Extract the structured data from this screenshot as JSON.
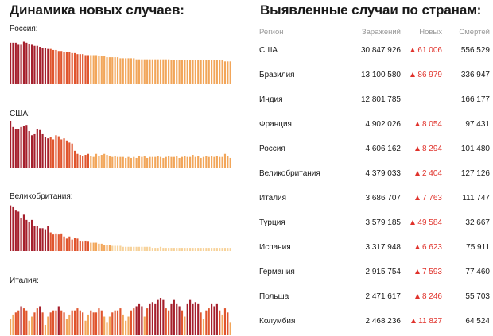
{
  "left_title": "Динамика новых случаев:",
  "right_title": "Выявленные случаи по странам:",
  "colors": {
    "high": "#a51f2c",
    "mid": "#e0552e",
    "low": "#f2a65a",
    "faint": "#f7d29a",
    "new_up": "#e0322b"
  },
  "charts": [
    {
      "country": "Россия:",
      "values": [
        40,
        40,
        40,
        38,
        38,
        41,
        40,
        39,
        38,
        37,
        37,
        36,
        35,
        35,
        34,
        34,
        33,
        33,
        32,
        32,
        31,
        31,
        31,
        30,
        30,
        29,
        29,
        29,
        28,
        28,
        28,
        28,
        28,
        27,
        27,
        27,
        26,
        26,
        26,
        26,
        26,
        25,
        25,
        25,
        25,
        25,
        25,
        24,
        24,
        24,
        24,
        24,
        24,
        24,
        24,
        24,
        24,
        24,
        24,
        24,
        23,
        23,
        23,
        23,
        23,
        23,
        23,
        23,
        23,
        23,
        23,
        23,
        23,
        23,
        23,
        23,
        23,
        23,
        23,
        23,
        22,
        22,
        22
      ]
    },
    {
      "country": "США:",
      "values": [
        46,
        40,
        38,
        38,
        40,
        41,
        42,
        36,
        32,
        33,
        38,
        37,
        33,
        30,
        29,
        30,
        28,
        32,
        31,
        28,
        29,
        27,
        25,
        24,
        17,
        14,
        13,
        12,
        13,
        14,
        12,
        11,
        14,
        12,
        13,
        14,
        13,
        12,
        11,
        12,
        11,
        11,
        11,
        10,
        11,
        10,
        11,
        10,
        12,
        11,
        12,
        10,
        11,
        11,
        11,
        12,
        11,
        10,
        11,
        12,
        11,
        11,
        12,
        10,
        11,
        12,
        11,
        11,
        13,
        11,
        12,
        10,
        11,
        12,
        11,
        12,
        11,
        12,
        11,
        11,
        14,
        12,
        10
      ]
    },
    {
      "country": "Великобритания:",
      "values": [
        44,
        43,
        39,
        38,
        32,
        35,
        30,
        28,
        30,
        24,
        24,
        22,
        22,
        21,
        24,
        18,
        16,
        17,
        16,
        17,
        14,
        12,
        14,
        11,
        13,
        12,
        10,
        9,
        10,
        9,
        8,
        8,
        8,
        7,
        7,
        6,
        6,
        6,
        5,
        5,
        5,
        5,
        4,
        4,
        4,
        4,
        4,
        4,
        4,
        4,
        4,
        4,
        4,
        3,
        3,
        3,
        4,
        3,
        3,
        3,
        3,
        3,
        3,
        3,
        3,
        3,
        3,
        3,
        3,
        3,
        3,
        3,
        3,
        3,
        3,
        3,
        3,
        3,
        3,
        3,
        3,
        3,
        3
      ]
    },
    {
      "country": "Италия:",
      "values": [
        16,
        20,
        22,
        24,
        28,
        26,
        24,
        14,
        18,
        22,
        26,
        28,
        22,
        10,
        18,
        22,
        24,
        24,
        28,
        24,
        22,
        16,
        20,
        24,
        24,
        26,
        24,
        22,
        14,
        20,
        24,
        22,
        22,
        26,
        24,
        18,
        12,
        18,
        22,
        24,
        24,
        26,
        20,
        14,
        18,
        24,
        26,
        28,
        30,
        28,
        18,
        26,
        30,
        32,
        30,
        34,
        36,
        34,
        26,
        24,
        30,
        34,
        30,
        28,
        24,
        18,
        30,
        34,
        30,
        32,
        30,
        22,
        16,
        24,
        26,
        30,
        28,
        30,
        24,
        20,
        26,
        22,
        12
      ]
    }
  ],
  "table": {
    "headers": {
      "region": "Регион",
      "cases": "Заражений",
      "new": "Новых",
      "deaths": "Смертей"
    },
    "rows": [
      {
        "region": "США",
        "cases": "30 847 926",
        "new": "61 006",
        "deaths": "556 529"
      },
      {
        "region": "Бразилия",
        "cases": "13 100 580",
        "new": "86 979",
        "deaths": "336 947"
      },
      {
        "region": "Индия",
        "cases": "12 801 785",
        "new": "",
        "deaths": "166 177"
      },
      {
        "region": "Франция",
        "cases": "4 902 026",
        "new": "8 054",
        "deaths": "97 431"
      },
      {
        "region": "Россия",
        "cases": "4 606 162",
        "new": "8 294",
        "deaths": "101 480"
      },
      {
        "region": "Великобритания",
        "cases": "4 379 033",
        "new": "2 404",
        "deaths": "127 126"
      },
      {
        "region": "Италия",
        "cases": "3 686 707",
        "new": "7 763",
        "deaths": "111 747"
      },
      {
        "region": "Турция",
        "cases": "3 579 185",
        "new": "49 584",
        "deaths": "32 667"
      },
      {
        "region": "Испания",
        "cases": "3 317 948",
        "new": "6 623",
        "deaths": "75 911"
      },
      {
        "region": "Германия",
        "cases": "2 915 754",
        "new": "7 593",
        "deaths": "77 460"
      },
      {
        "region": "Польша",
        "cases": "2 471 617",
        "new": "8 246",
        "deaths": "55 703"
      },
      {
        "region": "Колумбия",
        "cases": "2 468 236",
        "new": "11 827",
        "deaths": "64 524"
      }
    ]
  }
}
